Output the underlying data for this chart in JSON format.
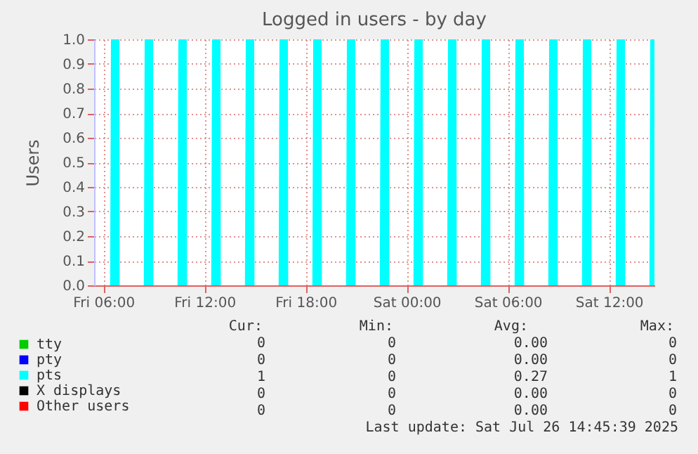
{
  "chart_data": {
    "type": "area",
    "title": "Logged in users - by day",
    "ylabel": "Users",
    "xlim": [
      "2025-07-25T05:27",
      "2025-07-26T14:42"
    ],
    "xticks": [
      {
        "value": "2025-07-25T06:00",
        "label": "Fri 06:00"
      },
      {
        "value": "2025-07-25T12:00",
        "label": "Fri 12:00"
      },
      {
        "value": "2025-07-25T18:00",
        "label": "Fri 18:00"
      },
      {
        "value": "2025-07-26T00:00",
        "label": "Sat 00:00"
      },
      {
        "value": "2025-07-26T06:00",
        "label": "Sat 06:00"
      },
      {
        "value": "2025-07-26T12:00",
        "label": "Sat 12:00"
      }
    ],
    "ylim": [
      0,
      1
    ],
    "yticks": [
      {
        "value": 0,
        "label": "0.0"
      },
      0.1,
      0.2,
      0.3,
      0.4,
      0.5,
      0.6,
      0.7,
      0.8,
      0.9,
      {
        "value": 1,
        "label": "1.0"
      }
    ],
    "grid": true,
    "legend": "bottom",
    "series": [
      {
        "name": "tty",
        "type": "line",
        "color": "#00cc00"
      },
      {
        "name": "pty",
        "type": "line",
        "color": "#0000ff"
      },
      {
        "name": "pts",
        "color": "#00ffff",
        "x": [
          "2025-07-25T05:27",
          "2025-07-25T06:24",
          "2025-07-25T06:27",
          "2025-07-25T06:57",
          "2025-07-25T06:58",
          "2025-07-25T08:24",
          "2025-07-25T08:27",
          "2025-07-25T08:57",
          "2025-07-25T08:58",
          "2025-07-25T10:24",
          "2025-07-25T10:27",
          "2025-07-25T10:57",
          "2025-07-25T10:58",
          "2025-07-25T12:24",
          "2025-07-25T12:27",
          "2025-07-25T12:57",
          "2025-07-25T12:58",
          "2025-07-25T14:24",
          "2025-07-25T14:27",
          "2025-07-25T14:57",
          "2025-07-25T14:58",
          "2025-07-25T16:24",
          "2025-07-25T16:27",
          "2025-07-25T16:57",
          "2025-07-25T16:58",
          "2025-07-25T18:24",
          "2025-07-25T18:27",
          "2025-07-25T18:57",
          "2025-07-25T18:58",
          "2025-07-25T20:24",
          "2025-07-25T20:27",
          "2025-07-25T20:57",
          "2025-07-25T20:58",
          "2025-07-25T22:24",
          "2025-07-25T22:27",
          "2025-07-25T22:57",
          "2025-07-25T22:58",
          "2025-07-26T00:24",
          "2025-07-26T00:27",
          "2025-07-26T00:57",
          "2025-07-26T00:58",
          "2025-07-26T02:24",
          "2025-07-26T02:27",
          "2025-07-26T02:57",
          "2025-07-26T02:58",
          "2025-07-26T04:24",
          "2025-07-26T04:27",
          "2025-07-26T04:57",
          "2025-07-26T04:58",
          "2025-07-26T06:24",
          "2025-07-26T06:27",
          "2025-07-26T06:57",
          "2025-07-26T06:58",
          "2025-07-26T08:24",
          "2025-07-26T08:27",
          "2025-07-26T08:57",
          "2025-07-26T08:58",
          "2025-07-26T10:24",
          "2025-07-26T10:27",
          "2025-07-26T10:57",
          "2025-07-26T10:58",
          "2025-07-26T12:24",
          "2025-07-26T12:27",
          "2025-07-26T12:57",
          "2025-07-26T12:58",
          "2025-07-26T14:24",
          "2025-07-26T14:27",
          "2025-07-26T14:42"
        ],
        "values": [
          0,
          0,
          1,
          1,
          0,
          0,
          1,
          1,
          0,
          0,
          1,
          1,
          0,
          0,
          1,
          1,
          0,
          0,
          1,
          1,
          0,
          0,
          1,
          1,
          0,
          0,
          1,
          1,
          0,
          0,
          1,
          1,
          0,
          0,
          1,
          1,
          0,
          0,
          1,
          1,
          0,
          0,
          1,
          1,
          0,
          0,
          1,
          1,
          0,
          0,
          1,
          1,
          0,
          0,
          1,
          1,
          0,
          0,
          1,
          1,
          0,
          0,
          1,
          1,
          0,
          0,
          1,
          1
        ]
      },
      {
        "name": "X displays",
        "type": "line",
        "color": "#000000"
      },
      {
        "name": "Other users",
        "type": "line",
        "color": "#ff0000"
      }
    ],
    "annotations": [
      "Cur:",
      "Min:",
      "Avg:",
      "Max:",
      "0",
      "0",
      "0.00",
      "0",
      "0",
      "0",
      "0.00",
      "0",
      "1",
      "0",
      "0.27",
      "1",
      "0",
      "0",
      "0.00",
      "0",
      "0",
      "0",
      "0.00",
      "0",
      "Last update: Sat Jul 26 14:45:39 2025"
    ]
  }
}
